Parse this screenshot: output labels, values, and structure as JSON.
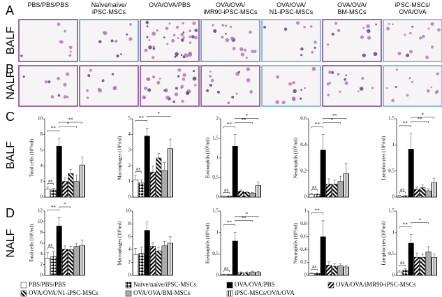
{
  "figure": {
    "panels": [
      "A",
      "B",
      "C",
      "D"
    ],
    "rows": [
      "BALF",
      "NALF"
    ],
    "image_labels": [
      "PBS/PBS/PBS",
      "Naïve/naïve/\niPSC-MSCs",
      "OVA/OVA/PBS",
      "OVA/OVA/\niMR90-iPSC-MSCs",
      "OVA/OVA/\nN1-iPSC-MSCs",
      "OVA/OVA/\nBM-MSCs",
      "iPSC-MSCs/\nOVA/OVA"
    ]
  },
  "groups": [
    {
      "name": "PBS/PBS/PBS",
      "fill": "white"
    },
    {
      "name": "Naïve/naïve/iPSC-MSCs",
      "fill": "diamond"
    },
    {
      "name": "OVA/OVA/PBS",
      "fill": "black"
    },
    {
      "name": "OVA/OVA/iMR90-iPSC-MSCs",
      "fill": "stripes"
    },
    {
      "name": "OVA/OVA/N1-iPSC-MSCs",
      "fill": "stripes-checker"
    },
    {
      "name": "OVA/OVA/BM-MSCs",
      "fill": "gray"
    },
    {
      "name": "iPSC-MSCs/OVA/OVA",
      "fill": "vstripes"
    }
  ],
  "chart_data": [
    {
      "type": "bar",
      "ylabel": "Total cells (10⁵/ml)",
      "ylim": [
        0,
        10
      ],
      "yticks": [
        0,
        2,
        4,
        6,
        8,
        10
      ],
      "values": [
        1.0,
        0.9,
        6.5,
        2.0,
        3.0,
        2.0,
        4.1
      ],
      "errors": [
        0.3,
        0.2,
        1.0,
        0.5,
        0.5,
        0.8,
        1.0
      ],
      "brackets": [
        {
          "label": "ns",
          "from": 0,
          "to": 1
        },
        {
          "label": "**",
          "from": 0,
          "to": 2
        },
        {
          "label": "*",
          "from": 2,
          "to": 5
        },
        {
          "label": "**",
          "from": 2,
          "to": 6
        }
      ]
    },
    {
      "type": "bar",
      "ylabel": "Macrophages (10⁵/ml)",
      "ylim": [
        0,
        5
      ],
      "yticks": [
        0,
        1,
        2,
        3,
        4,
        5
      ],
      "values": [
        1.1,
        0.9,
        3.9,
        1.6,
        2.5,
        1.7,
        3.1
      ],
      "errors": [
        0.3,
        0.2,
        0.5,
        0.4,
        0.3,
        0.5,
        0.6
      ],
      "brackets": [
        {
          "label": "ns",
          "from": 0,
          "to": 1
        },
        {
          "label": "**",
          "from": 0,
          "to": 2
        },
        {
          "label": "*",
          "from": 2,
          "to": 6
        }
      ]
    },
    {
      "type": "bar",
      "ylabel": "Eosinophils (10⁵/ml)",
      "ylim": [
        0,
        2
      ],
      "yticks": [
        0,
        0.5,
        1,
        1.5,
        2
      ],
      "values": [
        0.02,
        0.02,
        1.3,
        0.15,
        0.12,
        0.1,
        0.3
      ],
      "errors": [
        0.01,
        0.01,
        0.3,
        0.03,
        0.03,
        0.02,
        0.08
      ],
      "brackets": [
        {
          "label": "ns",
          "from": 0,
          "to": 1
        },
        {
          "label": "**",
          "from": 0,
          "to": 2
        },
        {
          "label": "**",
          "from": 2,
          "to": 5
        },
        {
          "label": "*",
          "from": 2,
          "to": 6
        }
      ]
    },
    {
      "type": "bar",
      "ylabel": "Neutrophils (10⁵/ml)",
      "ylim": [
        0,
        0.6
      ],
      "yticks": [
        0,
        0.2,
        0.4,
        0.6
      ],
      "values": [
        0.02,
        0.02,
        0.36,
        0.1,
        0.1,
        0.12,
        0.18
      ],
      "errors": [
        0.01,
        0.01,
        0.12,
        0.04,
        0.03,
        0.04,
        0.08
      ],
      "brackets": [
        {
          "label": "ns",
          "from": 0,
          "to": 1
        },
        {
          "label": "**",
          "from": 0,
          "to": 2
        },
        {
          "label": "*",
          "from": 2,
          "to": 5
        },
        {
          "label": "**",
          "from": 2,
          "to": 6
        }
      ]
    },
    {
      "type": "bar",
      "ylabel": "Lymphocytes (10⁵/ml)",
      "ylim": [
        0,
        1.5
      ],
      "yticks": [
        0,
        0.5,
        1,
        1.5
      ],
      "values": [
        0.02,
        0.02,
        0.92,
        0.15,
        0.18,
        0.12,
        0.28
      ],
      "errors": [
        0.01,
        0.01,
        0.3,
        0.05,
        0.05,
        0.04,
        0.08
      ],
      "brackets": [
        {
          "label": "ns",
          "from": 0,
          "to": 1
        },
        {
          "label": "**",
          "from": 0,
          "to": 2
        },
        {
          "label": "**",
          "from": 2,
          "to": 5
        },
        {
          "label": "*",
          "from": 2,
          "to": 6
        }
      ]
    },
    {
      "type": "bar",
      "ylabel": "Total cells (10⁵/ml)",
      "ylim": [
        0,
        12
      ],
      "yticks": [
        0,
        2,
        4,
        6,
        8,
        10,
        12
      ],
      "values": [
        3.2,
        3.5,
        9.2,
        4.9,
        4.8,
        5.4,
        5.6
      ],
      "errors": [
        1.0,
        1.0,
        1.6,
        0.6,
        0.6,
        0.6,
        1.0
      ],
      "brackets": [
        {
          "label": "ns",
          "from": 0,
          "to": 1
        },
        {
          "label": "**",
          "from": 0,
          "to": 2
        },
        {
          "label": "*",
          "from": 2,
          "to": 4
        }
      ]
    },
    {
      "type": "bar",
      "ylabel": "Macrophages (10⁵/ml)",
      "ylim": [
        0,
        10
      ],
      "yticks": [
        0,
        2,
        4,
        6,
        8,
        10
      ],
      "values": [
        3.2,
        3.4,
        7.0,
        4.5,
        3.8,
        4.6,
        5.0
      ],
      "errors": [
        1.0,
        1.0,
        1.3,
        0.6,
        0.6,
        0.7,
        1.0
      ],
      "brackets": []
    },
    {
      "type": "bar",
      "ylabel": "Eosinophils (10⁵/ml)",
      "ylim": [
        0,
        1.5
      ],
      "yticks": [
        0,
        0.5,
        1,
        1.5
      ],
      "values": [
        0.02,
        0.02,
        0.8,
        0.06,
        0.06,
        0.08,
        0.07
      ],
      "errors": [
        0.01,
        0.01,
        0.2,
        0.02,
        0.02,
        0.02,
        0.02
      ],
      "brackets": [
        {
          "label": "ns",
          "from": 0,
          "to": 1
        },
        {
          "label": "**",
          "from": 0,
          "to": 2
        },
        {
          "label": "**",
          "from": 2,
          "to": 5
        },
        {
          "label": "*",
          "from": 2,
          "to": 6
        }
      ]
    },
    {
      "type": "bar",
      "ylabel": "Neutrophils (10⁵/ml)",
      "ylim": [
        0,
        1
      ],
      "yticks": [
        0,
        0.2,
        0.4,
        0.6,
        0.8,
        1
      ],
      "values": [
        0.03,
        0.03,
        0.6,
        0.16,
        0.14,
        0.15,
        0.13
      ],
      "errors": [
        0.01,
        0.01,
        0.25,
        0.05,
        0.04,
        0.03,
        0.03
      ],
      "brackets": [
        {
          "label": "ns",
          "from": 0,
          "to": 1
        },
        {
          "label": "**",
          "from": 0,
          "to": 2
        }
      ]
    },
    {
      "type": "bar",
      "ylabel": "Lymphocytes (10⁵/ml)",
      "ylim": [
        0,
        1.5
      ],
      "yticks": [
        0,
        0.5,
        1,
        1.5
      ],
      "values": [
        0.08,
        0.12,
        0.75,
        0.42,
        0.42,
        0.55,
        0.42
      ],
      "errors": [
        0.03,
        0.04,
        0.2,
        0.1,
        0.08,
        0.12,
        0.08
      ],
      "brackets": [
        {
          "label": "ns",
          "from": 0,
          "to": 1
        },
        {
          "label": "**",
          "from": 0,
          "to": 2
        },
        {
          "label": "*",
          "from": 2,
          "to": 5
        }
      ]
    }
  ]
}
